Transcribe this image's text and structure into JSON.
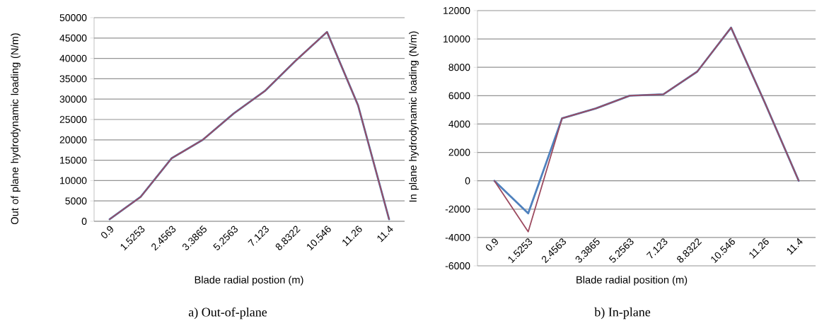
{
  "chart_data": [
    {
      "type": "line",
      "title": "a) Out-of-plane",
      "xlabel": "Blade radial postion (m)",
      "ylabel": "Out of plane hydrodynamic loading (N/m)",
      "categories": [
        "0.9",
        "1.5253",
        "2.4563",
        "3.3865",
        "5.2563",
        "7.123",
        "8.8322",
        "10.546",
        "11.26",
        "11.4"
      ],
      "series": [
        {
          "color": "#4f81bd",
          "values": [
            500,
            6000,
            15500,
            20000,
            26500,
            32000,
            39500,
            46500,
            28500,
            500
          ]
        },
        {
          "color": "#9c4a5f",
          "values": [
            500,
            6000,
            15500,
            20000,
            26500,
            32000,
            39500,
            46500,
            28500,
            500
          ]
        }
      ],
      "ylim": [
        0,
        50000
      ],
      "yticks": [
        0,
        5000,
        10000,
        15000,
        20000,
        25000,
        30000,
        35000,
        40000,
        45000,
        50000
      ],
      "grid": "y"
    },
    {
      "type": "line",
      "title": "b) In-plane",
      "xlabel": "Blade radial position (m)",
      "ylabel": "In plane hydrodynamic loading (N/m)",
      "categories": [
        "0.9",
        "1.5253",
        "2.4563",
        "3.3865",
        "5.2563",
        "7.123",
        "8.8322",
        "10.546",
        "11.26",
        "11.4"
      ],
      "series": [
        {
          "color": "#4f81bd",
          "values": [
            0,
            -2300,
            4400,
            5100,
            6000,
            6100,
            7700,
            10800,
            5500,
            0
          ]
        },
        {
          "color": "#9c4a5f",
          "values": [
            0,
            -3600,
            4400,
            5100,
            6000,
            6100,
            7700,
            10800,
            5500,
            0
          ]
        }
      ],
      "ylim": [
        -6000,
        12000
      ],
      "yticks": [
        -6000,
        -4000,
        -2000,
        0,
        2000,
        4000,
        6000,
        8000,
        10000,
        12000
      ],
      "grid": "y"
    }
  ]
}
